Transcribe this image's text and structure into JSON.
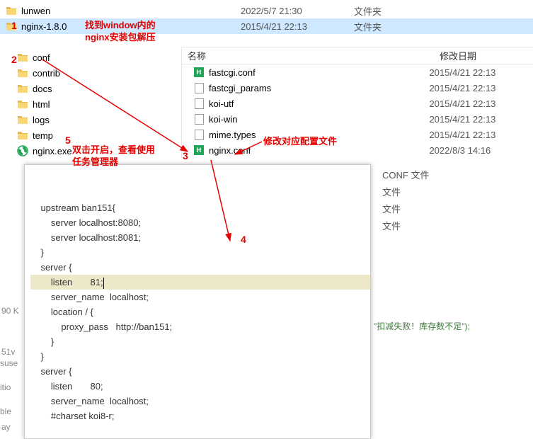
{
  "colors": {
    "highlight": "#cde8ff",
    "anno": "#e60000",
    "cfg": "#23a559",
    "editor_hl": "#ede8c8"
  },
  "leftTop": {
    "rows": [
      {
        "icon": "folder",
        "name": "lunwen",
        "date": "2022/5/7 21:30",
        "type": "文件夹",
        "sel": false
      },
      {
        "icon": "folder",
        "name": "nginx-1.8.0",
        "date": "2015/4/21 22:13",
        "type": "文件夹",
        "sel": true
      }
    ]
  },
  "leftList": {
    "rows": [
      {
        "icon": "folder",
        "name": "conf"
      },
      {
        "icon": "folder",
        "name": "contrib"
      },
      {
        "icon": "folder",
        "name": "docs"
      },
      {
        "icon": "folder",
        "name": "html"
      },
      {
        "icon": "folder",
        "name": "logs"
      },
      {
        "icon": "folder",
        "name": "temp"
      },
      {
        "icon": "exe",
        "name": "nginx.exe"
      }
    ]
  },
  "rightHdr": {
    "name": "名称",
    "date": "修改日期"
  },
  "rightList": {
    "rows": [
      {
        "icon": "cfg",
        "name": "fastcgi.conf",
        "date": "2015/4/21 22:13"
      },
      {
        "icon": "file",
        "name": "fastcgi_params",
        "date": "2015/4/21 22:13"
      },
      {
        "icon": "file",
        "name": "koi-utf",
        "date": "2015/4/21 22:13"
      },
      {
        "icon": "file",
        "name": "koi-win",
        "date": "2015/4/21 22:13"
      },
      {
        "icon": "file",
        "name": "mime.types",
        "date": "2015/4/21 22:13"
      },
      {
        "icon": "cfg",
        "name": "nginx.conf",
        "date": "2022/8/3 14:16"
      }
    ]
  },
  "farRight": {
    "lines": [
      "CONF 文件",
      "文件",
      "文件",
      "文件"
    ]
  },
  "editor": {
    "lines": [
      "    upstream ban151{",
      "        server localhost:8080;",
      "        server localhost:8081;",
      "    }",
      "    server {",
      "        listen       81;",
      "        server_name  localhost;",
      "        location / {",
      "            proxy_pass   http://ban151;",
      "        }",
      "    }",
      "    server {",
      "        listen       80;",
      "        server_name  localhost;",
      "",
      "        #charset koi8-r;"
    ],
    "highlightLine": 5
  },
  "annotations": {
    "n1": "1",
    "n2": "2",
    "n3": "3",
    "n4": "4",
    "n5": "5",
    "t1a": "找到window内的",
    "t1b": "nginx安装包解压",
    "t3": "修改对应配置文件",
    "t5a": "双击开启，查看使用",
    "t5b": "任务管理器"
  },
  "bgText": {
    "a": "90 K",
    "b": "51v",
    "c": "suse",
    "d": "itio",
    "e": "ble",
    "f": "ay",
    "g": "\"扣减失败！库存数不足\");"
  }
}
